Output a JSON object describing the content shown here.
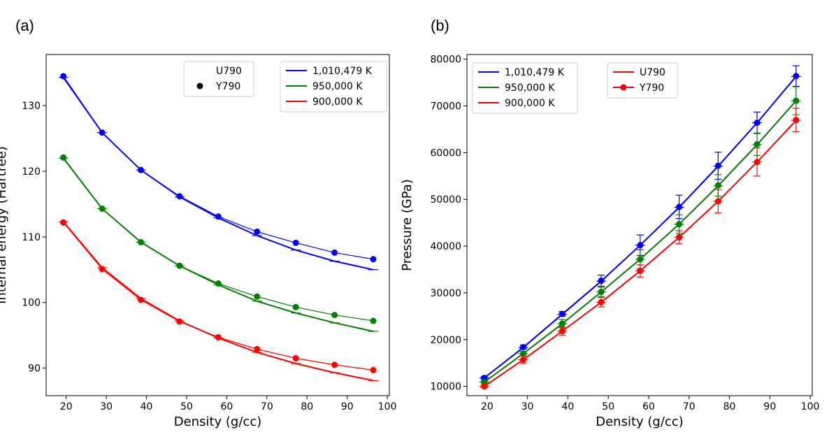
{
  "panels": [
    {
      "letter": "(a)"
    },
    {
      "letter": "(b)"
    }
  ],
  "legend_labels": {
    "u790": "U790",
    "y790": "Y790",
    "t1": "1,010,479 K",
    "t2": "950,000 K",
    "t3": "900,000 K"
  },
  "colors": {
    "t1": "#0000ff",
    "t2": "#008000",
    "t3": "#ff0000"
  },
  "chart_data": [
    {
      "type": "line",
      "xlabel": "Density (g/cc)",
      "ylabel": "Internal energy (Hartree)",
      "xlim": [
        15,
        100.5
      ],
      "ylim": [
        85.8,
        137.8
      ],
      "xticks": [
        20,
        30,
        40,
        50,
        60,
        70,
        80,
        90,
        100
      ],
      "yticks": [
        90,
        100,
        110,
        120,
        130
      ],
      "x": [
        19.3,
        28.95,
        38.6,
        48.25,
        57.9,
        67.55,
        77.2,
        86.85,
        96.5
      ],
      "series": [
        {
          "name": "1,010,479 K",
          "method": "U790",
          "color": "#0000ff",
          "values": [
            134.3,
            125.9,
            120.2,
            116.1,
            112.9,
            110.2,
            108.0,
            106.3,
            105.0
          ]
        },
        {
          "name": "1,010,479 K",
          "method": "Y790",
          "color": "#0000ff",
          "values": [
            134.5,
            125.9,
            120.2,
            116.2,
            113.1,
            110.8,
            109.1,
            107.6,
            106.6
          ]
        },
        {
          "name": "950,000 K",
          "method": "U790",
          "color": "#008000",
          "values": [
            122.0,
            114.3,
            109.2,
            105.6,
            102.7,
            100.2,
            98.4,
            96.9,
            95.6
          ]
        },
        {
          "name": "950,000 K",
          "method": "Y790",
          "color": "#008000",
          "values": [
            122.1,
            114.3,
            109.2,
            105.6,
            102.9,
            100.9,
            99.3,
            98.1,
            97.2
          ]
        },
        {
          "name": "900,000 K",
          "method": "U790",
          "color": "#ff0000",
          "values": [
            112.3,
            105.3,
            100.6,
            97.2,
            94.6,
            92.4,
            90.7,
            89.3,
            88.1
          ]
        },
        {
          "name": "900,000 K",
          "method": "Y790",
          "color": "#ff0000",
          "values": [
            112.2,
            105.1,
            100.4,
            97.1,
            94.7,
            92.9,
            91.5,
            90.5,
            89.7
          ]
        }
      ]
    },
    {
      "type": "line",
      "xlabel": "Density (g/cc)",
      "ylabel": "Pressure (GPa)",
      "xlim": [
        15,
        100.5
      ],
      "ylim": [
        8000,
        81000
      ],
      "xticks": [
        20,
        30,
        40,
        50,
        60,
        70,
        80,
        90,
        100
      ],
      "yticks": [
        10000,
        20000,
        30000,
        40000,
        50000,
        60000,
        70000,
        80000
      ],
      "x": [
        19.3,
        28.95,
        38.6,
        48.25,
        57.9,
        67.55,
        77.2,
        86.85,
        96.5
      ],
      "series": [
        {
          "name": "1,010,479 K",
          "method": "U790",
          "color": "#0000ff",
          "values": [
            11800,
            18300,
            25400,
            32500,
            40200,
            48300,
            57100,
            66400,
            76300
          ]
        },
        {
          "name": "1,010,479 K",
          "method": "Y790",
          "color": "#0000ff",
          "values": [
            11800,
            18400,
            25500,
            32600,
            40200,
            48400,
            57200,
            66400,
            76400
          ],
          "errors": [
            300,
            400,
            500,
            1200,
            2200,
            2500,
            2900,
            2300,
            2200
          ]
        },
        {
          "name": "950,000 K",
          "method": "U790",
          "color": "#008000",
          "values": [
            10900,
            17000,
            23400,
            30200,
            37200,
            44700,
            52900,
            61700,
            71100
          ]
        },
        {
          "name": "950,000 K",
          "method": "Y790",
          "color": "#008000",
          "values": [
            10900,
            17000,
            23400,
            30200,
            37200,
            44700,
            53000,
            61800,
            71100
          ],
          "errors": [
            300,
            500,
            900,
            1000,
            2000,
            2000,
            2300,
            2400,
            3000
          ]
        },
        {
          "name": "900,000 K",
          "method": "U790",
          "color": "#ff0000",
          "values": [
            10000,
            15700,
            21800,
            28000,
            34700,
            41900,
            49600,
            58000,
            66900
          ]
        },
        {
          "name": "900,000 K",
          "method": "Y790",
          "color": "#ff0000",
          "values": [
            10000,
            15700,
            21800,
            28000,
            34700,
            41900,
            49600,
            58000,
            67000
          ],
          "errors": [
            300,
            800,
            900,
            1000,
            1300,
            1400,
            2500,
            3000,
            2500
          ]
        }
      ]
    }
  ]
}
